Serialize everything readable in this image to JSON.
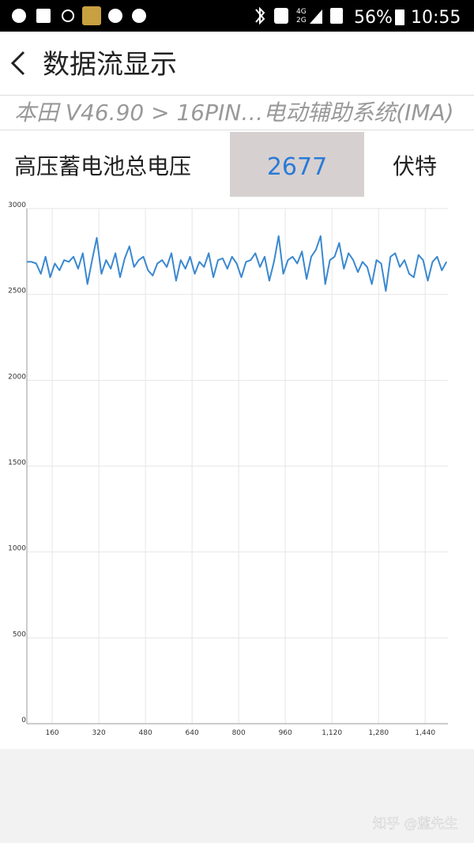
{
  "status_bar": {
    "network_top": "4G",
    "network_bottom": "2G",
    "battery": "56%",
    "time": "10:55"
  },
  "header": {
    "title": "数据流显示"
  },
  "breadcrumb": "本田 V46.90 > 16PIN…电动辅助系统(IMA)",
  "reading": {
    "label": "高压蓄电池总电压",
    "value": 2677,
    "unit": "伏特"
  },
  "chart_data": {
    "type": "line",
    "x": [
      73,
      89,
      105,
      121,
      137,
      153,
      169,
      185,
      201,
      217,
      233,
      249,
      265,
      281,
      297,
      313,
      329,
      345,
      361,
      377,
      393,
      409,
      425,
      441,
      457,
      473,
      489,
      505,
      521,
      537,
      553,
      569,
      585,
      601,
      617,
      633,
      649,
      665,
      681,
      697,
      713,
      729,
      745,
      761,
      777,
      793,
      809,
      825,
      841,
      857,
      873,
      889,
      905,
      921,
      937,
      953,
      969,
      985,
      1001,
      1017,
      1033,
      1049,
      1065,
      1081,
      1097,
      1113,
      1129,
      1145,
      1161,
      1177,
      1193,
      1209,
      1225,
      1241,
      1257,
      1273,
      1289,
      1305,
      1321,
      1337,
      1353,
      1369,
      1385,
      1401,
      1417,
      1433,
      1449,
      1465,
      1481,
      1497,
      1513
    ],
    "series": [
      {
        "color": "#3a88d0",
        "values": [
          2690,
          2690,
          2680,
          2620,
          2720,
          2600,
          2680,
          2640,
          2700,
          2690,
          2720,
          2650,
          2740,
          2560,
          2700,
          2830,
          2620,
          2700,
          2650,
          2740,
          2600,
          2710,
          2780,
          2660,
          2700,
          2720,
          2640,
          2610,
          2680,
          2700,
          2660,
          2740,
          2580,
          2700,
          2650,
          2720,
          2620,
          2690,
          2660,
          2740,
          2600,
          2700,
          2710,
          2650,
          2720,
          2680,
          2600,
          2690,
          2700,
          2740,
          2660,
          2720,
          2580,
          2690,
          2840,
          2620,
          2700,
          2720,
          2680,
          2750,
          2590,
          2720,
          2760,
          2840,
          2560,
          2700,
          2720,
          2800,
          2650,
          2740,
          2700,
          2630,
          2690,
          2660,
          2560,
          2700,
          2680,
          2520,
          2720,
          2740,
          2660,
          2700,
          2620,
          2600,
          2730,
          2700,
          2580,
          2690,
          2720,
          2640,
          2690
        ]
      }
    ],
    "xlim": [
      73,
      1518
    ],
    "xticks": [
      160,
      320,
      480,
      640,
      800,
      960,
      {
        "value": 1120,
        "label": "1,120"
      },
      {
        "value": 1280,
        "label": "1,280"
      },
      {
        "value": 1440,
        "label": "1,440"
      }
    ],
    "ylim": [
      0,
      3000
    ],
    "yticks": [
      0,
      500,
      1000,
      1500,
      2000,
      2500,
      3000
    ],
    "grid": true
  },
  "watermark": "知乎 @蓝先生"
}
